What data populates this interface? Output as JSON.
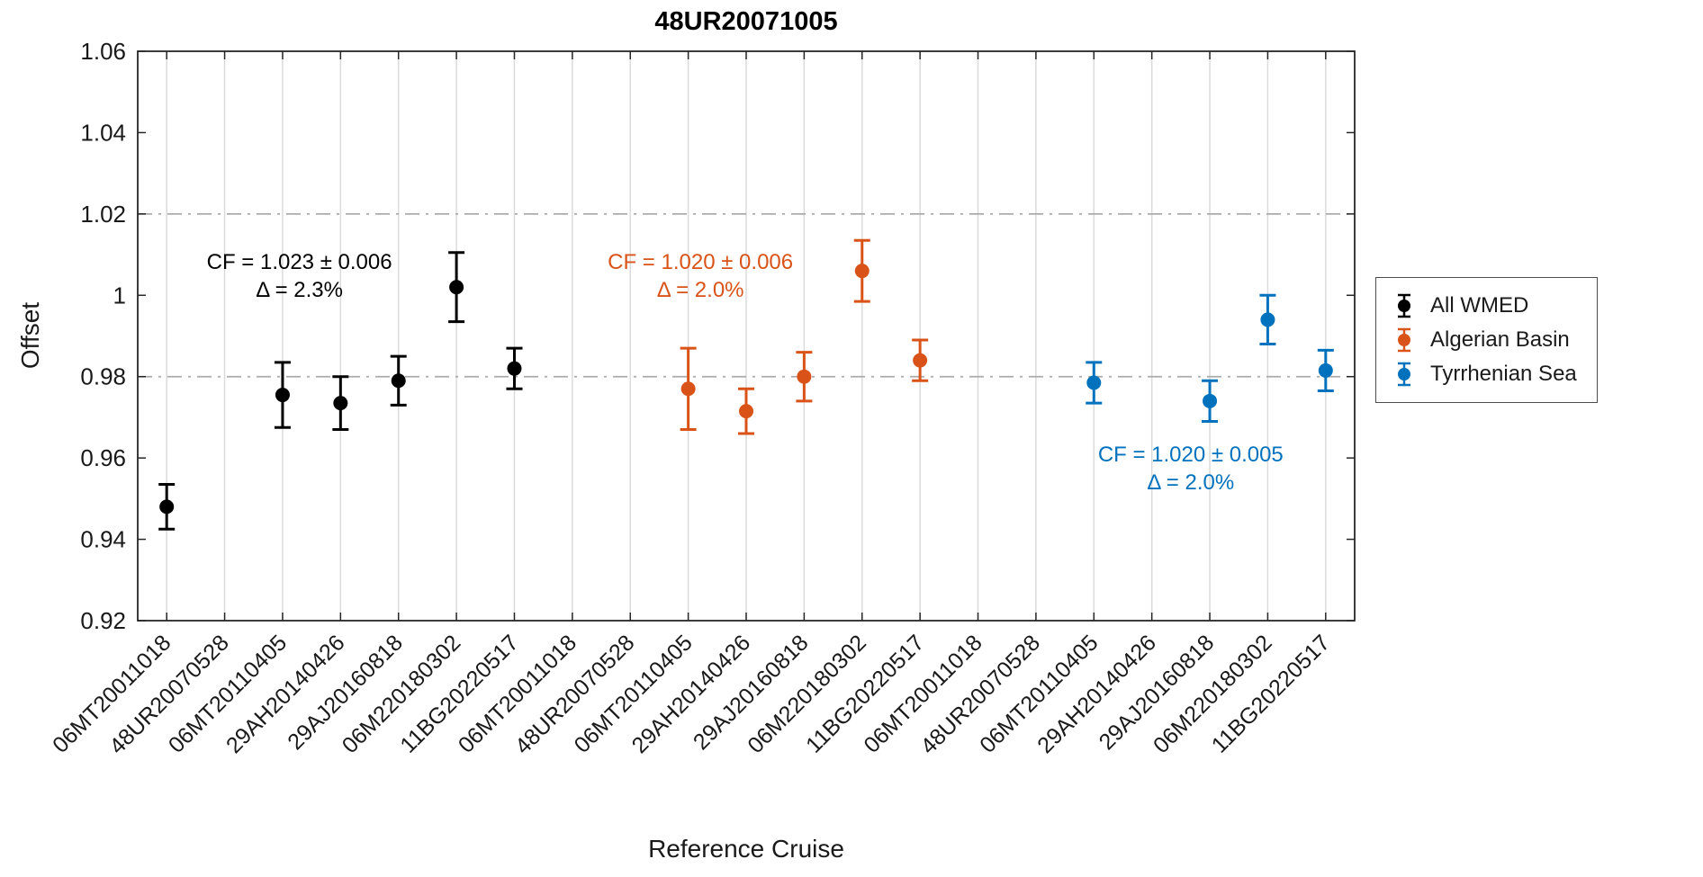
{
  "chart_data": {
    "type": "scatter",
    "title": "48UR20071005",
    "xlabel": "Reference Cruise",
    "ylabel": "Offset",
    "ylim": [
      0.92,
      1.06
    ],
    "ytick_values": [
      0.92,
      0.94,
      0.96,
      0.98,
      1,
      1.02,
      1.04,
      1.06
    ],
    "ytick_labels": [
      "0.92",
      "0.94",
      "0.96",
      "0.98",
      "1",
      "1.02",
      "1.04",
      "1.06"
    ],
    "reference_lines": [
      0.98,
      1.02
    ],
    "grid": "vertical solid gridlines at every category; horizontal dash-dot reference lines at 0.98 and 1.02",
    "legend_position": "outside-right",
    "categories": [
      "06MT20011018",
      "48UR20070528",
      "06MT20110405",
      "29AH20140426",
      "29AJ20160818",
      "06M220180302",
      "11BG20220517",
      "06MT20011018",
      "48UR20070528",
      "06MT20110405",
      "29AH20140426",
      "29AJ20160818",
      "06M220180302",
      "11BG20220517",
      "06MT20011018",
      "48UR20070528",
      "06MT20110405",
      "29AH20140426",
      "29AJ20160818",
      "06M220180302",
      "11BG20220517"
    ],
    "series": [
      {
        "name": "All WMED",
        "color": "#000000",
        "points": [
          {
            "cat_index": 0,
            "category": "06MT20011018",
            "y": 0.948,
            "err": 0.0055
          },
          {
            "cat_index": 2,
            "category": "06MT20110405",
            "y": 0.9755,
            "err": 0.008
          },
          {
            "cat_index": 3,
            "category": "29AH20140426",
            "y": 0.9735,
            "err": 0.0065
          },
          {
            "cat_index": 4,
            "category": "29AJ20160818",
            "y": 0.979,
            "err": 0.006
          },
          {
            "cat_index": 5,
            "category": "06M220180302",
            "y": 1.002,
            "err": 0.0085
          },
          {
            "cat_index": 6,
            "category": "11BG20220517",
            "y": 0.982,
            "err": 0.005
          }
        ]
      },
      {
        "name": "Algerian Basin",
        "color": "#D95319",
        "points": [
          {
            "cat_index": 9,
            "category": "06MT20110405",
            "y": 0.977,
            "err": 0.01
          },
          {
            "cat_index": 10,
            "category": "29AH20140426",
            "y": 0.9715,
            "err": 0.0055
          },
          {
            "cat_index": 11,
            "category": "29AJ20160818",
            "y": 0.98,
            "err": 0.006
          },
          {
            "cat_index": 12,
            "category": "06M220180302",
            "y": 1.006,
            "err": 0.0075
          },
          {
            "cat_index": 13,
            "category": "11BG20220517",
            "y": 0.984,
            "err": 0.005
          }
        ]
      },
      {
        "name": "Tyrrhenian Sea",
        "color": "#0072BD",
        "points": [
          {
            "cat_index": 16,
            "category": "06MT20110405",
            "y": 0.9785,
            "err": 0.005
          },
          {
            "cat_index": 18,
            "category": "29AJ20160818",
            "y": 0.974,
            "err": 0.005
          },
          {
            "cat_index": 19,
            "category": "06M220180302",
            "y": 0.994,
            "err": 0.006
          },
          {
            "cat_index": 20,
            "category": "11BG20220517",
            "y": 0.9815,
            "err": 0.005
          }
        ]
      }
    ],
    "annotations": [
      {
        "series": "All WMED",
        "lines": [
          "CF = 1.023 ± 0.006",
          "Δ = 2.3%"
        ],
        "color": "#000000",
        "x_cat": 2.29,
        "y_val": 1.0065
      },
      {
        "series": "Algerian Basin",
        "lines": [
          "CF = 1.020 ± 0.006",
          "Δ = 2.0%"
        ],
        "color": "#D95319",
        "x_cat": 9.21,
        "y_val": 1.0065
      },
      {
        "series": "Tyrrhenian Sea",
        "lines": [
          "CF = 1.020 ± 0.005",
          "Δ = 2.0%"
        ],
        "color": "#0072BD",
        "x_cat": 17.67,
        "y_val": 0.9592
      }
    ],
    "colors": {
      "axis": "#262626",
      "tick_label": "#1a1a1a",
      "grid": "#dbdbdb",
      "reference_line": "#ababab"
    }
  }
}
